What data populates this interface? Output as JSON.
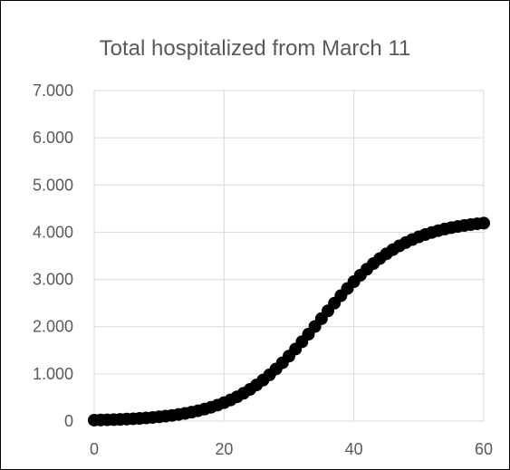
{
  "chart_data": {
    "type": "scatter",
    "title": "Total hospitalized from March 11",
    "xlabel": "",
    "ylabel": "",
    "xlim": [
      0,
      60
    ],
    "ylim": [
      0,
      7000
    ],
    "x_ticks": [
      0,
      20,
      40,
      60
    ],
    "x_tick_labels": [
      "0",
      "20",
      "40",
      "60"
    ],
    "y_ticks": [
      0,
      1000,
      2000,
      3000,
      4000,
      5000,
      6000,
      7000
    ],
    "y_tick_labels": [
      "0",
      "1.000",
      "2.000",
      "3.000",
      "4.000",
      "5.000",
      "6.000",
      "7.000"
    ],
    "grid": true,
    "legend": "none",
    "marker_color": "#000000",
    "series": [
      {
        "x": [
          0,
          1,
          2,
          3,
          4,
          5,
          6,
          7,
          8,
          9,
          10,
          11,
          12,
          13,
          14,
          15,
          16,
          17,
          18,
          19,
          20,
          21,
          22,
          23,
          24,
          25,
          26,
          27,
          28,
          29,
          30,
          31,
          32,
          33,
          34,
          35,
          36,
          37,
          38,
          39,
          40,
          41,
          42,
          43,
          44,
          45,
          46,
          47,
          48,
          49,
          50,
          51,
          52,
          53,
          54,
          55,
          56,
          57,
          58,
          59,
          60
        ],
        "y": [
          20,
          23,
          27,
          31,
          36,
          42,
          49,
          57,
          67,
          77,
          90,
          105,
          121,
          141,
          163,
          189,
          219,
          254,
          293,
          339,
          390,
          448,
          514,
          589,
          672,
          765,
          868,
          980,
          1103,
          1235,
          1376,
          1525,
          1680,
          1840,
          2004,
          2169,
          2334,
          2497,
          2655,
          2808,
          2953,
          3090,
          3217,
          3335,
          3443,
          3541,
          3630,
          3710,
          3781,
          3845,
          3902,
          3951,
          3995,
          4033,
          4067,
          4096,
          4121,
          4143,
          4162,
          4179,
          4193
        ]
      }
    ]
  }
}
